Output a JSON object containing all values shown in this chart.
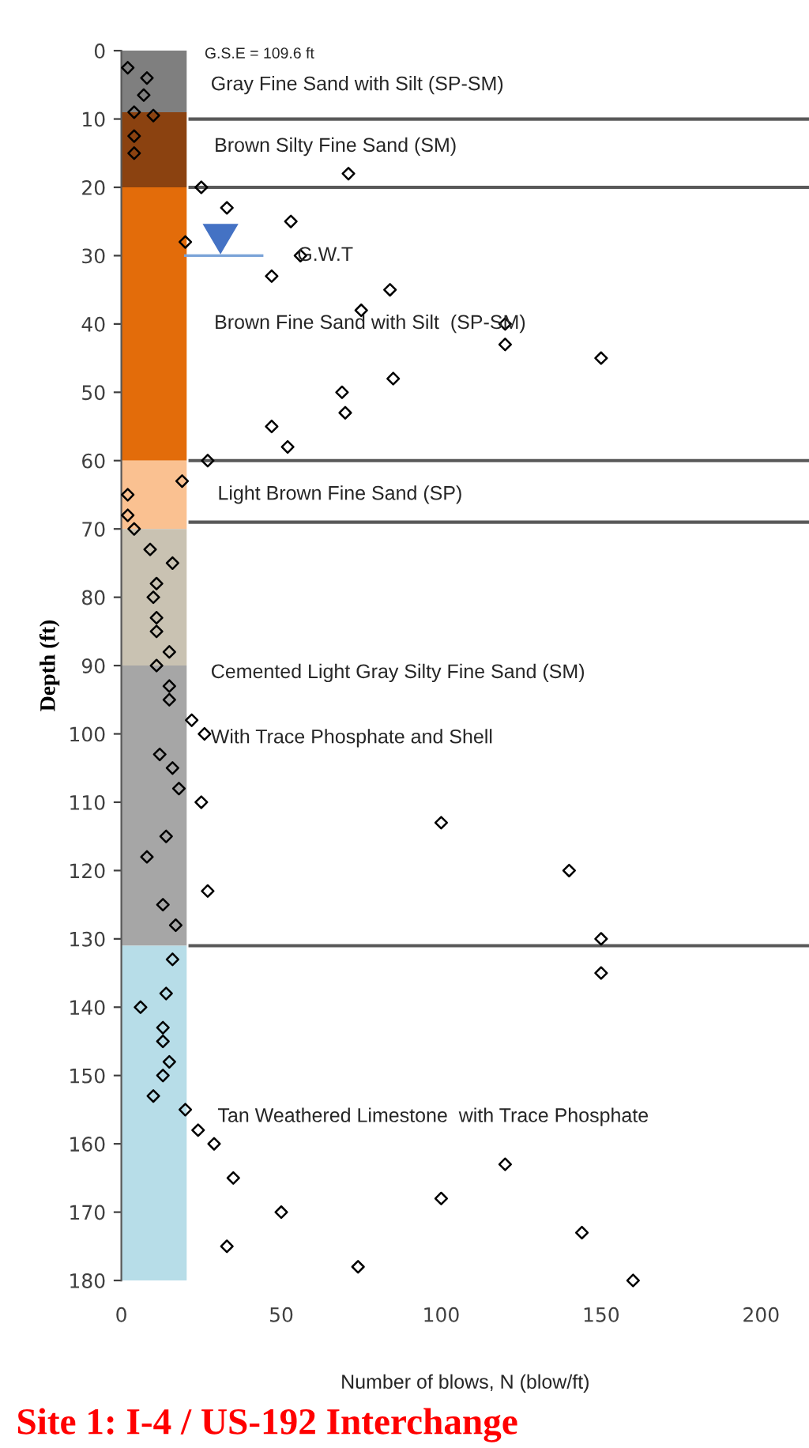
{
  "chart_data": {
    "type": "scatter",
    "xlabel": "Number of blows, N (blow/ft)",
    "ylabel": "Depth (ft)",
    "xlim": [
      0,
      215
    ],
    "ylim": [
      180,
      0
    ],
    "xticks": [
      0,
      50,
      100,
      150,
      200
    ],
    "yticks": [
      0,
      10,
      20,
      30,
      40,
      50,
      60,
      70,
      80,
      90,
      100,
      110,
      120,
      130,
      140,
      150,
      160,
      170,
      180
    ],
    "grid": false,
    "legend": false,
    "marker": "diamond",
    "series": [
      {
        "color": "#000000",
        "x": [
          2,
          8,
          7,
          4,
          10,
          4,
          4,
          71,
          25,
          33,
          53,
          20,
          56,
          47,
          84,
          75,
          120,
          120,
          150,
          85,
          69,
          70,
          47,
          52,
          27,
          19,
          2,
          2,
          4,
          9,
          16,
          11,
          10,
          11,
          11,
          15,
          11,
          15,
          15,
          22,
          26,
          12,
          16,
          18,
          25,
          100,
          14,
          8,
          140,
          27,
          13,
          17,
          150,
          16,
          150,
          14,
          6,
          13,
          13,
          15,
          13,
          10,
          20,
          24,
          29,
          35,
          50,
          33,
          74,
          100,
          120,
          144,
          160
        ],
        "values": [
          2.5,
          4,
          6.5,
          9,
          9.5,
          12.5,
          15,
          18,
          20,
          23,
          25,
          28,
          30,
          33,
          35,
          38,
          40,
          43,
          45,
          48,
          50,
          53,
          55,
          58,
          60,
          63,
          65,
          68,
          70,
          73,
          75,
          78,
          80,
          83,
          85,
          88,
          90,
          93,
          95,
          98,
          100,
          103,
          105,
          108,
          110,
          113,
          115,
          118,
          120,
          123,
          125,
          128,
          130,
          133,
          135,
          138,
          140,
          143,
          145,
          148,
          150,
          153,
          155,
          158,
          160,
          165,
          170,
          175,
          178,
          168,
          163,
          173,
          180
        ]
      }
    ],
    "bands": [
      {
        "axis": "y",
        "from": 0,
        "to": 9,
        "color": "#7f7f7f"
      },
      {
        "axis": "y",
        "from": 9,
        "to": 20,
        "color": "#8b4210"
      },
      {
        "axis": "y",
        "from": 20,
        "to": 60,
        "color": "#e36c0a"
      },
      {
        "axis": "y",
        "from": 60,
        "to": 70,
        "color": "#fac191"
      },
      {
        "axis": "y",
        "from": 70,
        "to": 90,
        "color": "#c9c2b2"
      },
      {
        "axis": "y",
        "from": 90,
        "to": 131,
        "color": "#a6a6a6"
      },
      {
        "axis": "y",
        "from": 131,
        "to": 180,
        "color": "#b7dde8"
      }
    ],
    "ref_lines": [
      {
        "axis": "y",
        "value": 10,
        "color": "#595959"
      },
      {
        "axis": "y",
        "value": 20,
        "color": "#595959"
      },
      {
        "axis": "y",
        "value": 60,
        "color": "#595959"
      },
      {
        "axis": "y",
        "value": 69,
        "color": "#595959"
      },
      {
        "axis": "y",
        "value": 131,
        "color": "#595959"
      }
    ],
    "annotations": [
      "G.S.E = 109.6 ft",
      "Gray Fine Sand with Silt (SP-SM)",
      "Brown Silty Fine Sand (SM)",
      {
        "text": "G.W.T",
        "x": 53,
        "y": 30
      },
      "Brown Fine Sand with Silt  (SP-SM)",
      "Light Brown Fine Sand (SP)",
      "Cemented Light Gray Silty Fine Sand (SM)",
      "With Trace Phosphate and Shell",
      "Tan Weathered Limestone  with Trace Phosphate",
      "Site 1: I-4 / US-192 Interchange"
    ]
  }
}
